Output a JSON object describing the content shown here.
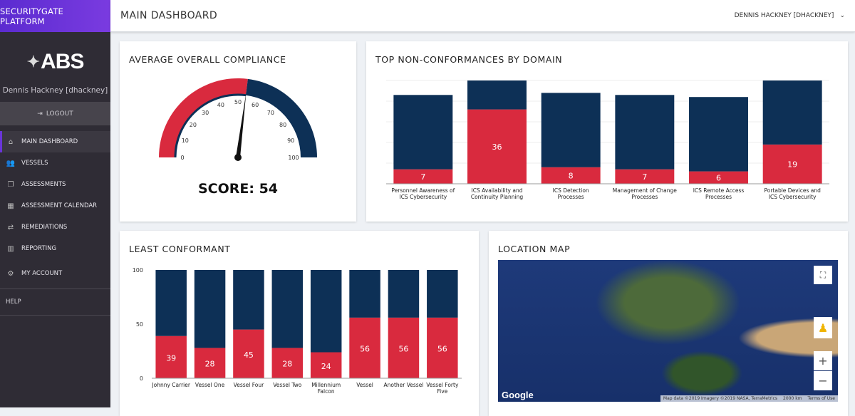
{
  "brand": "SECURITYGATE PLATFORM",
  "logo": "ABS",
  "user_name": "Dennis Hackney [dhackney]",
  "logout": "LOGOUT",
  "nav": [
    {
      "label": "MAIN DASHBOARD",
      "icon": "home-icon",
      "glyph": "⌂"
    },
    {
      "label": "VESSELS",
      "icon": "users-icon",
      "glyph": "👥"
    },
    {
      "label": "ASSESSMENTS",
      "icon": "copy-icon",
      "glyph": "❐"
    },
    {
      "label": "ASSESSMENT CALENDAR",
      "icon": "calendar-icon",
      "glyph": "▦"
    },
    {
      "label": "REMEDIATIONS",
      "icon": "exchange-icon",
      "glyph": "⇄"
    },
    {
      "label": "REPORTING",
      "icon": "bar-chart-icon",
      "glyph": "▥"
    },
    {
      "label": "MY ACCOUNT",
      "icon": "cogs-icon",
      "glyph": "⚙"
    }
  ],
  "help": "HELP",
  "header": {
    "title": "MAIN DASHBOARD",
    "user": "DENNIS HACKNEY [DHACKNEY]",
    "chevron": "⌄"
  },
  "colors": {
    "red": "#d92a3e",
    "navy": "#0d3056",
    "purple": "#6a35d8"
  },
  "chart_data": [
    {
      "type": "gauge",
      "title": "AVERAGE OVERALL COMPLIANCE",
      "value": 54,
      "range": [
        0,
        100
      ],
      "ticks": [
        0,
        10,
        20,
        30,
        40,
        50,
        60,
        70,
        80,
        90,
        100
      ],
      "score_label": "SCORE: 54"
    },
    {
      "type": "bar",
      "stacked": true,
      "title": "TOP NON-CONFORMANCES BY DOMAIN",
      "categories": [
        "Personnel Awareness of ICS Cybersecurity",
        "ICS Availability and Continuity Planning",
        "ICS Detection Processes",
        "Management of Change Processes",
        "ICS Remote Access Processes",
        "Portable Devices and ICS Cybersecurity"
      ],
      "series": [
        {
          "values": [
            7,
            36,
            8,
            7,
            6,
            19
          ],
          "color": "#d92a3e"
        },
        {
          "values": [
            36,
            14,
            36,
            36,
            36,
            31
          ],
          "color": "#0d3056"
        }
      ],
      "ylim": [
        0,
        50
      ],
      "grid": true
    },
    {
      "type": "bar",
      "stacked": true,
      "title": "LEAST CONFORMANT",
      "categories": [
        "Johnny Carrier",
        "Vessel One",
        "Vessel Four",
        "Vessel Two",
        "Millennium Falcon",
        "Vessel",
        "Another Vessel",
        "Vessel Forty Five"
      ],
      "series": [
        {
          "values": [
            39,
            28,
            45,
            28,
            24,
            56,
            56,
            56
          ],
          "color": "#d92a3e"
        },
        {
          "values": [
            61,
            72,
            55,
            72,
            76,
            44,
            44,
            44
          ],
          "color": "#0d3056"
        }
      ],
      "ylim": [
        0,
        100
      ],
      "yticks": [
        0,
        50,
        100
      ]
    }
  ],
  "map": {
    "title": "LOCATION MAP",
    "google": "Google",
    "attribution": "Map data ©2019 Imagery ©2019 NASA, TerraMetrics",
    "scale": "2000 km",
    "terms": "Terms of Use",
    "zoom_in": "+",
    "zoom_out": "−"
  }
}
